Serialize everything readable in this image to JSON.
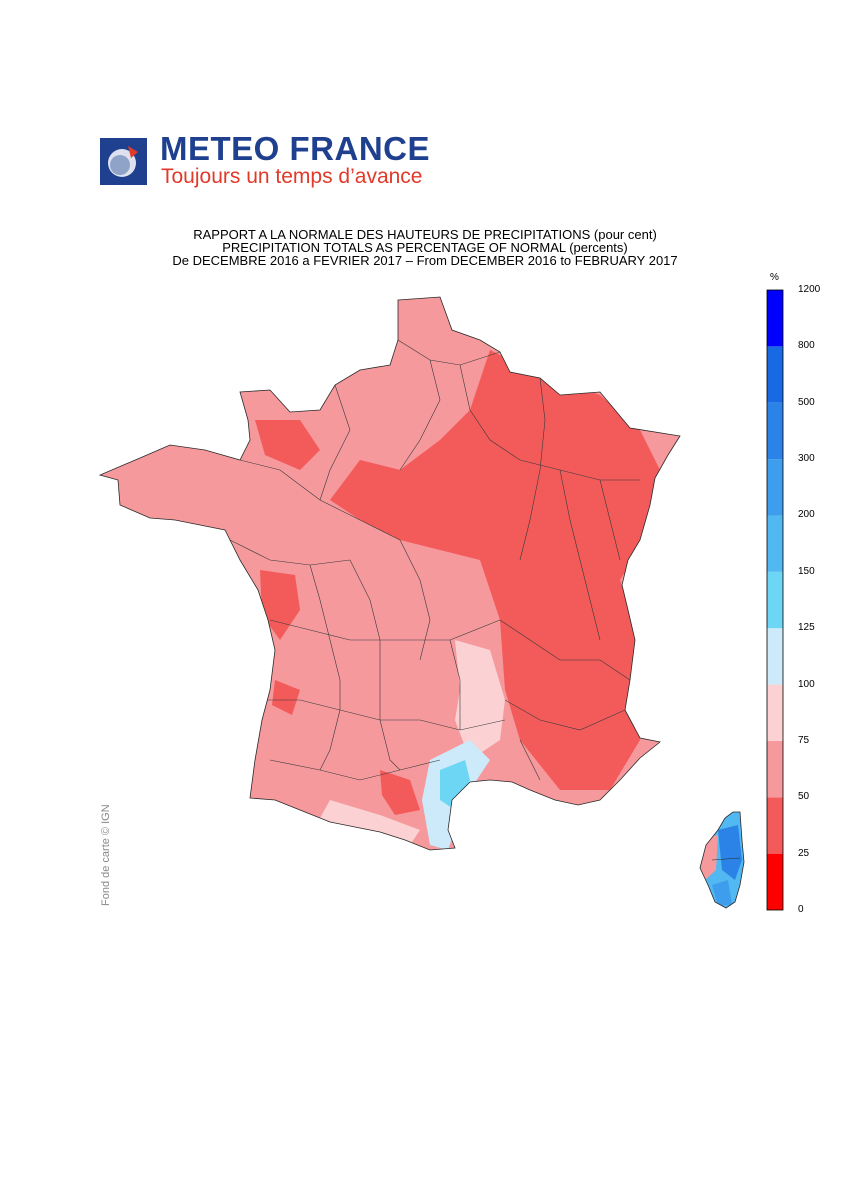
{
  "header": {
    "brand_name": "METEO FRANCE",
    "tagline": "Toujours un temps d’avance",
    "brand_color": "#1f3f8f",
    "tagline_color": "#e03a2a"
  },
  "title": {
    "line1": "RAPPORT A LA NORMALE DES HAUTEURS DE PRECIPITATIONS (pour cent)",
    "line2": "PRECIPITATION TOTALS AS PERCENTAGE OF NORMAL (percents)",
    "line3": "De DECEMBRE 2016 a FEVRIER 2017 – From DECEMBER 2016 to FEBRUARY 2017"
  },
  "map": {
    "region": "France",
    "inset": "Corse",
    "credit": "Fond de carte © IGN"
  },
  "legend": {
    "unit": "%",
    "ticks": [
      "1200",
      "800",
      "500",
      "300",
      "200",
      "150",
      "125",
      "100",
      "75",
      "50",
      "25",
      "0"
    ],
    "bins": [
      {
        "range": "0-25",
        "color": "#ff0000"
      },
      {
        "range": "25-50",
        "color": "#f35a5a"
      },
      {
        "range": "50-75",
        "color": "#f5999c"
      },
      {
        "range": "75-100",
        "color": "#fbd1d3"
      },
      {
        "range": "100-125",
        "color": "#cdeafa"
      },
      {
        "range": "125-150",
        "color": "#6cd6f4"
      },
      {
        "range": "150-200",
        "color": "#52b8f1"
      },
      {
        "range": "200-300",
        "color": "#3f9ded"
      },
      {
        "range": "300-500",
        "color": "#2b83e8"
      },
      {
        "range": "500-800",
        "color": "#176ae4"
      },
      {
        "range": "800-1200",
        "color": "#0000ff"
      }
    ]
  }
}
